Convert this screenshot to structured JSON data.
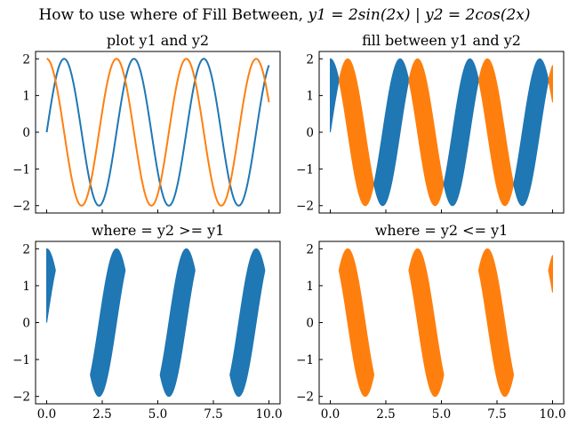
{
  "figure": {
    "title_text": "How to use where of Fill Between, ",
    "title_math": "y1 = 2sin(2x) | y2 = 2cos(2x)"
  },
  "colors": {
    "y1": "#1f77b4",
    "y2": "#ff7f0e"
  },
  "chart_data": [
    {
      "type": "line",
      "title": "plot y1 and y2",
      "series": [
        {
          "expression": "2*sin(2*x)",
          "color": "#1f77b4"
        },
        {
          "expression": "2*cos(2*x)",
          "color": "#ff7f0e"
        }
      ],
      "x_range": [
        0,
        10
      ],
      "xlim": [
        -0.5,
        10.5
      ],
      "ylim": [
        -2.2,
        2.2
      ],
      "xticks": [
        0,
        2.5,
        5,
        7.5,
        10
      ],
      "xtick_labels": [],
      "yticks": [
        -2,
        -1,
        0,
        1,
        2
      ],
      "ytick_labels": [
        "−2",
        "−1",
        "0",
        "1",
        "2"
      ],
      "grid": false
    },
    {
      "type": "area",
      "title": "fill between y1 and y2",
      "fill": "between y1 and y2",
      "where": "all",
      "x_range": [
        0,
        10
      ],
      "xlim": [
        -0.5,
        10.5
      ],
      "ylim": [
        -2.2,
        2.2
      ],
      "xticks": [
        0,
        2.5,
        5,
        7.5,
        10
      ],
      "xtick_labels": [],
      "yticks": [
        -2,
        -1,
        0,
        1,
        2
      ],
      "ytick_labels": [
        "−2",
        "−1",
        "0",
        "1",
        "2"
      ],
      "grid": false
    },
    {
      "type": "area",
      "title": "where = y2 >= y1",
      "fill": "between y1 and y2",
      "where": "y2 >= y1",
      "x_range": [
        0,
        10
      ],
      "xlim": [
        -0.5,
        10.5
      ],
      "ylim": [
        -2.2,
        2.2
      ],
      "xticks": [
        0,
        2.5,
        5,
        7.5,
        10
      ],
      "xtick_labels": [
        "0.0",
        "2.5",
        "5.0",
        "7.5",
        "10.0"
      ],
      "yticks": [
        -2,
        -1,
        0,
        1,
        2
      ],
      "ytick_labels": [
        "−2",
        "−1",
        "0",
        "1",
        "2"
      ],
      "grid": false
    },
    {
      "type": "area",
      "title": "where = y2 <= y1",
      "fill": "between y1 and y2",
      "where": "y2 <= y1",
      "x_range": [
        0,
        10
      ],
      "xlim": [
        -0.5,
        10.5
      ],
      "ylim": [
        -2.2,
        2.2
      ],
      "xticks": [
        0,
        2.5,
        5,
        7.5,
        10
      ],
      "xtick_labels": [
        "0.0",
        "2.5",
        "5.0",
        "7.5",
        "10.0"
      ],
      "yticks": [
        -2,
        -1,
        0,
        1,
        2
      ],
      "ytick_labels": [
        "−2",
        "−1",
        "0",
        "1",
        "2"
      ],
      "grid": false
    }
  ]
}
